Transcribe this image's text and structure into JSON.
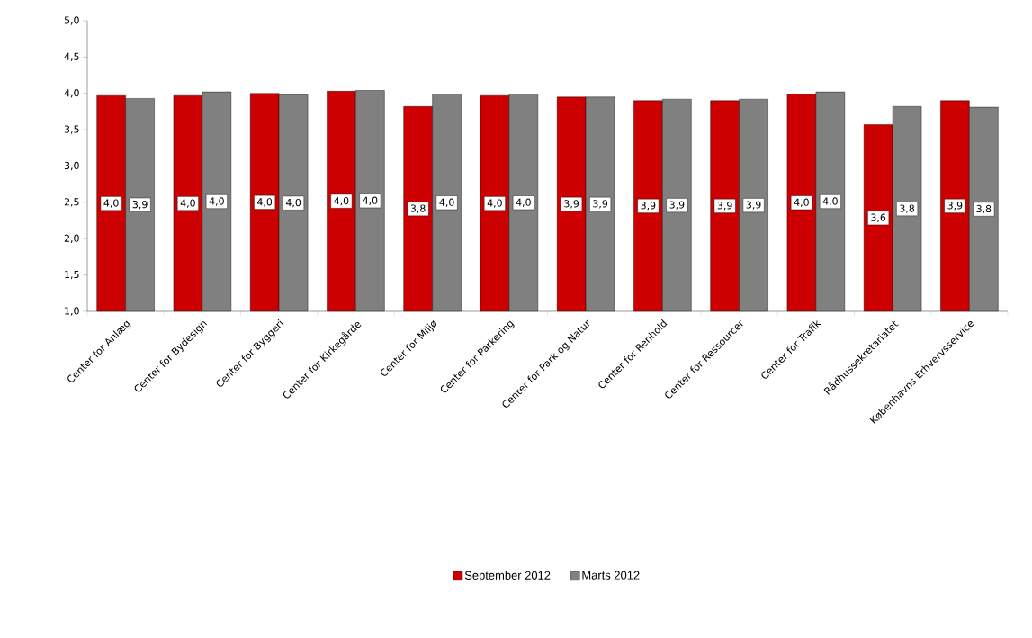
{
  "chart_data": {
    "type": "bar",
    "categories": [
      "Center for Anlæg",
      "Center for Bydesign",
      "Center for Byggeri",
      "Center for Kirkegårde",
      "Center for Miljø",
      "Center for Parkering",
      "Center for Park og Natur",
      "Center for Renhold",
      "Center for Ressourcer",
      "Center for Trafik",
      "Rådhussekretariatet",
      "Københavns Erhvervsservice"
    ],
    "series": [
      {
        "name": "September 2012",
        "color": "#cc0000",
        "values": [
          3.97,
          3.97,
          4.0,
          4.03,
          3.82,
          3.97,
          3.95,
          3.9,
          3.9,
          3.99,
          3.57,
          3.9
        ],
        "value_labels": [
          "4,0",
          "4,0",
          "4,0",
          "4,0",
          "3,8",
          "4,0",
          "3,9",
          "3,9",
          "3,9",
          "4,0",
          "3,6",
          "3,9"
        ]
      },
      {
        "name": "Marts 2012",
        "color": "#808080",
        "values": [
          3.93,
          4.02,
          3.98,
          4.04,
          3.99,
          3.99,
          3.95,
          3.92,
          3.92,
          4.02,
          3.82,
          3.81
        ],
        "value_labels": [
          "3,9",
          "4,0",
          "4,0",
          "4,0",
          "4,0",
          "4,0",
          "3,9",
          "3,9",
          "3,9",
          "4,0",
          "3,8",
          "3,8"
        ]
      }
    ],
    "ylim": [
      1.0,
      5.0
    ],
    "yticks": [
      {
        "value": 1.0,
        "label": "1,0"
      },
      {
        "value": 1.5,
        "label": "1,5"
      },
      {
        "value": 2.0,
        "label": "2,0"
      },
      {
        "value": 2.5,
        "label": "2,5"
      },
      {
        "value": 3.0,
        "label": "3,0"
      },
      {
        "value": 3.5,
        "label": "3,5"
      },
      {
        "value": 4.0,
        "label": "4,0"
      },
      {
        "value": 4.5,
        "label": "4,5"
      },
      {
        "value": 5.0,
        "label": "5,0"
      }
    ],
    "legend": "bottom"
  }
}
